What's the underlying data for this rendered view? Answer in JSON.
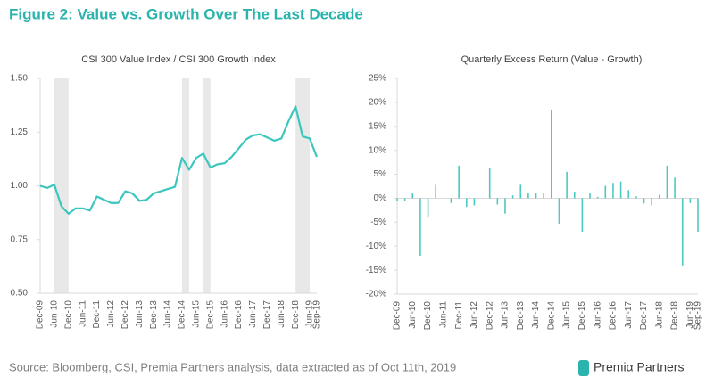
{
  "title": "Figure 2: Value vs. Growth Over The Last Decade",
  "source": "Source: Bloomberg, CSI, Premia Partners analysis, data extracted as of Oct 11th, 2019",
  "logo": "Premiα Partners",
  "chart_data": [
    {
      "type": "line",
      "title": "CSI 300 Value Index / CSI 300 Growth Index",
      "categories": [
        "Dec-09",
        null,
        "Jun-10",
        null,
        "Dec-10",
        null,
        "Jun-11",
        null,
        "Dec-11",
        null,
        "Jun-12",
        null,
        "Dec-12",
        null,
        "Jun-13",
        null,
        "Dec-13",
        null,
        "Jun-14",
        null,
        "Dec-14",
        null,
        "Jun-15",
        null,
        "Dec-15",
        null,
        "Jun-16",
        null,
        "Dec-16",
        null,
        "Jun-17",
        null,
        "Dec-17",
        null,
        "Jun-18",
        null,
        "Dec-18",
        null,
        "Jun-19",
        "Sep-19"
      ],
      "values": [
        1.0,
        0.99,
        1.005,
        0.905,
        0.87,
        0.895,
        0.895,
        0.885,
        0.95,
        0.935,
        0.92,
        0.92,
        0.975,
        0.965,
        0.93,
        0.935,
        0.965,
        0.975,
        0.985,
        0.995,
        1.13,
        1.075,
        1.13,
        1.15,
        1.085,
        1.1,
        1.105,
        1.135,
        1.175,
        1.215,
        1.235,
        1.24,
        1.225,
        1.21,
        1.22,
        1.3,
        1.37,
        1.23,
        1.22,
        1.135
      ],
      "color": "#3cc6be",
      "ylim": [
        0.5,
        1.5
      ],
      "yticks": [
        {
          "value": 0.5,
          "label": "0.50"
        },
        {
          "value": 0.75,
          "label": "0.75"
        },
        {
          "value": 1.0,
          "label": "1.00"
        },
        {
          "value": 1.25,
          "label": "1.25"
        },
        {
          "value": 1.5,
          "label": "1.50"
        }
      ],
      "shaded": [
        [
          2,
          4
        ],
        [
          20,
          21
        ],
        [
          23,
          24
        ],
        [
          36,
          38
        ]
      ],
      "shade_color": "#e8e8e8"
    },
    {
      "type": "bar",
      "title": "Quarterly Excess Return (Value - Growth)",
      "categories": [
        "Dec-09",
        null,
        "Jun-10",
        null,
        "Dec-10",
        null,
        "Jun-11",
        null,
        "Dec-11",
        null,
        "Jun-12",
        null,
        "Dec-12",
        null,
        "Jun-13",
        null,
        "Dec-13",
        null,
        "Jun-14",
        null,
        "Dec-14",
        null,
        "Jun-15",
        null,
        "Dec-15",
        null,
        "Jun-16",
        null,
        "Dec-16",
        null,
        "Jun-17",
        null,
        "Dec-17",
        null,
        "Jun-18",
        null,
        "Dec-18",
        null,
        "Jun-19",
        "Sep-19"
      ],
      "values": [
        -0.5,
        -0.5,
        1.0,
        -12,
        -4,
        2.8,
        0,
        -1,
        6.8,
        -1.8,
        -1.5,
        0,
        6.4,
        -1.3,
        -3.2,
        0.6,
        2.8,
        1.0,
        1.0,
        1.2,
        18.5,
        -5.3,
        5.5,
        1.4,
        -7,
        1.2,
        0.3,
        2.6,
        3.2,
        3.5,
        1.7,
        0.4,
        -1.1,
        -1.5,
        0.7,
        6.8,
        4.3,
        -14,
        -1,
        -7
      ],
      "color": "#4cc9c0",
      "ylim": [
        -20,
        25
      ],
      "yticks": [
        {
          "value": -20,
          "label": "-20%"
        },
        {
          "value": -15,
          "label": "-15%"
        },
        {
          "value": -10,
          "label": "-10%"
        },
        {
          "value": -5,
          "label": "-5%"
        },
        {
          "value": 0,
          "label": "0%"
        },
        {
          "value": 5,
          "label": "5%"
        },
        {
          "value": 10,
          "label": "10%"
        },
        {
          "value": 15,
          "label": "15%"
        },
        {
          "value": 20,
          "label": "20%"
        },
        {
          "value": 25,
          "label": "25%"
        }
      ]
    }
  ]
}
